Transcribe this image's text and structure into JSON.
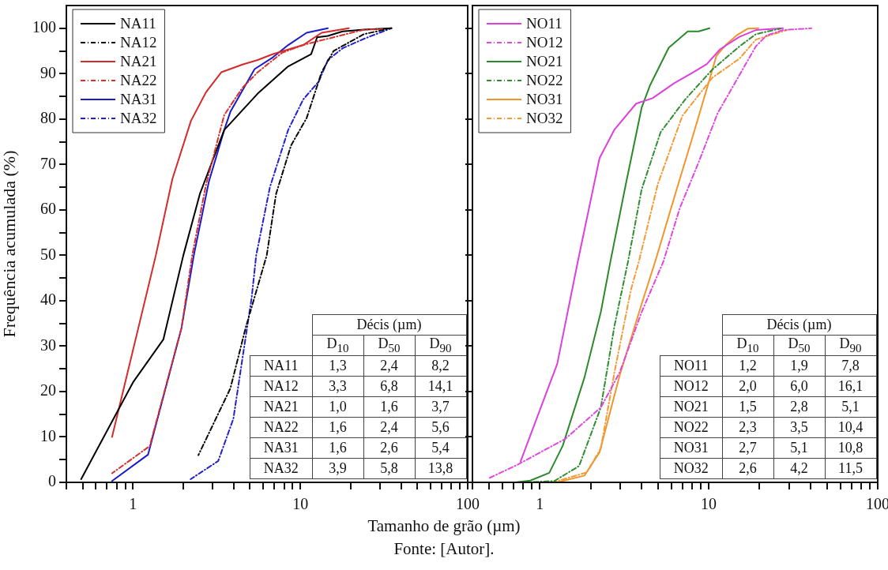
{
  "chart_data": [
    {
      "type": "line",
      "ylabel": "Frequência acumulada (%)",
      "xlabel": "Tamanho de grão (µm)",
      "log": "x",
      "legend": "top left",
      "xlim": [
        0.4,
        100
      ],
      "ylim": [
        0,
        105
      ],
      "xticks": [
        {
          "value": 0.4,
          "label": null
        },
        {
          "value": 0.5,
          "label": null
        },
        {
          "value": 0.6,
          "label": null
        },
        {
          "value": 0.7,
          "label": null
        },
        {
          "value": 0.8,
          "label": null
        },
        {
          "value": 0.9,
          "label": null
        },
        1,
        {
          "value": 2,
          "label": null
        },
        {
          "value": 3,
          "label": null
        },
        {
          "value": 4,
          "label": null
        },
        {
          "value": 5,
          "label": null
        },
        {
          "value": 6,
          "label": null
        },
        {
          "value": 7,
          "label": null
        },
        {
          "value": 8,
          "label": null
        },
        {
          "value": 9,
          "label": null
        },
        10,
        {
          "value": 20,
          "label": null
        },
        {
          "value": 30,
          "label": null
        },
        {
          "value": 40,
          "label": null
        },
        {
          "value": 50,
          "label": null
        },
        {
          "value": 60,
          "label": null
        },
        {
          "value": 70,
          "label": null
        },
        {
          "value": 80,
          "label": null
        },
        {
          "value": 90,
          "label": null
        },
        100
      ],
      "yticks": [
        0,
        {
          "value": 5,
          "label": null
        },
        10,
        {
          "value": 15,
          "label": null
        },
        20,
        {
          "value": 25,
          "label": null
        },
        30,
        {
          "value": 35,
          "label": null
        },
        40,
        {
          "value": 45,
          "label": null
        },
        50,
        {
          "value": 55,
          "label": null
        },
        60,
        {
          "value": 65,
          "label": null
        },
        70,
        {
          "value": 75,
          "label": null
        },
        80,
        {
          "value": 85,
          "label": null
        },
        90,
        {
          "value": 95,
          "label": null
        },
        100
      ],
      "annotations": [
        "Décis (µm)",
        "D$_{10}$",
        "D$_{50}$",
        "D$_{90}$",
        "NA11",
        "1,3",
        "2,4",
        "8,2",
        "NA12",
        "3,3",
        "6,8",
        "14,1",
        "NA21",
        "1,0",
        "1,6",
        "3,7",
        "NA22",
        "1,6",
        "2,4",
        "5,6",
        "NA31",
        "1,6",
        "2,6",
        "5,4",
        "NA32",
        "3,9",
        "5,8",
        "13,8",
        "Fonte: [Autor]."
      ],
      "series": [
        {
          "name": "NA11",
          "color": "#000000",
          "line_style": "solid",
          "x": [
            0.49,
            1.0,
            1.52,
            2.0,
            2.51,
            3.51,
            5.56,
            8.46,
            11.6,
            12.6,
            14.6,
            17.9,
            24.1,
            35
          ],
          "values": [
            0.7,
            22,
            31.5,
            50,
            63.5,
            77.6,
            85.6,
            91.6,
            94.3,
            98,
            98.3,
            99.3,
            99.7,
            100
          ]
        },
        {
          "name": "NA12",
          "color": "#080808",
          "line_style": "dashdot",
          "x": [
            2.46,
            3.82,
            4.71,
            6.3,
            7.16,
            8.8,
            10.9,
            13.4,
            15.8,
            24,
            35
          ],
          "values": [
            6,
            20.7,
            34,
            50,
            63.5,
            74.2,
            80.2,
            90.3,
            95,
            98.7,
            100
          ]
        },
        {
          "name": "NA21",
          "color": "#d42a2a",
          "line_style": "solid",
          "x": [
            0.75,
            1.37,
            1.72,
            2.22,
            2.73,
            3.37,
            4.51,
            5.56,
            6.86,
            10.4,
            13.4,
            19.5
          ],
          "values": [
            10,
            50,
            66.8,
            79.6,
            85.9,
            90.3,
            92,
            93,
            94.3,
            96.3,
            99,
            100
          ]
        },
        {
          "name": "NA22",
          "color": "#d8302c",
          "line_style": "dashdot",
          "x": [
            0.75,
            1.26,
            1.95,
            2.26,
            2.73,
            3.51,
            4.51,
            5.56,
            7.78,
            10.4,
            12.3,
            15.8,
            24.1,
            31
          ],
          "values": [
            2,
            8,
            34,
            50,
            65.5,
            80.9,
            86.9,
            90.3,
            94.6,
            96.3,
            97,
            98,
            99.7,
            99.8
          ]
        },
        {
          "name": "NA31",
          "color": "#1a1acc",
          "line_style": "solid",
          "x": [
            0.75,
            1.23,
            1.95,
            2.31,
            2.84,
            3.51,
            3.82,
            5.33,
            6.86,
            8.46,
            10.9,
            14.6
          ],
          "values": [
            0.3,
            6.1,
            34,
            50,
            66.2,
            77.6,
            81.6,
            91,
            93.6,
            96.3,
            99,
            100
          ]
        },
        {
          "name": "NA32",
          "color": "#2020d0",
          "line_style": "dashdot",
          "x": [
            2.21,
            3.23,
            3.98,
            4.51,
            5.12,
            5.45,
            6.58,
            8.46,
            10.4,
            12.9,
            14.6,
            17.9,
            24.1,
            35
          ],
          "values": [
            0.7,
            4.7,
            14,
            27.3,
            40.7,
            50,
            65,
            77.6,
            84.3,
            88.3,
            93,
            95.6,
            97.7,
            100
          ]
        }
      ]
    },
    {
      "type": "line",
      "log": "x",
      "legend": "top left",
      "tick_labels": "x",
      "xlim": [
        0.4,
        100
      ],
      "ylim": [
        0,
        105
      ],
      "xticks": [
        {
          "value": 0.4,
          "label": null
        },
        {
          "value": 0.5,
          "label": null
        },
        {
          "value": 0.6,
          "label": null
        },
        {
          "value": 0.7,
          "label": null
        },
        {
          "value": 0.8,
          "label": null
        },
        {
          "value": 0.9,
          "label": null
        },
        1,
        {
          "value": 2,
          "label": null
        },
        {
          "value": 3,
          "label": null
        },
        {
          "value": 4,
          "label": null
        },
        {
          "value": 5,
          "label": null
        },
        {
          "value": 6,
          "label": null
        },
        {
          "value": 7,
          "label": null
        },
        {
          "value": 8,
          "label": null
        },
        {
          "value": 9,
          "label": null
        },
        10,
        {
          "value": 20,
          "label": null
        },
        {
          "value": 30,
          "label": null
        },
        {
          "value": 40,
          "label": null
        },
        {
          "value": 50,
          "label": null
        },
        {
          "value": 60,
          "label": null
        },
        {
          "value": 70,
          "label": null
        },
        {
          "value": 80,
          "label": null
        },
        {
          "value": 90,
          "label": null
        },
        100
      ],
      "yticks": [
        0,
        10,
        20,
        30,
        40,
        50,
        60,
        70,
        80,
        90,
        100
      ],
      "annotations": [
        "Décis (µm)",
        "D$_{10}$",
        "D$_{50}$",
        "D$_{90}$",
        "NO11",
        "1,2",
        "1,9",
        "7,8",
        "NO12",
        "2,0",
        "6,0",
        "16,1",
        "NO21",
        "1,5",
        "2,8",
        "5,1",
        "NO22",
        "2,3",
        "3,5",
        "10,4",
        "NO31",
        "2,7",
        "5,1",
        "10,8",
        "NO32",
        "2,6",
        "4,2",
        "11,5"
      ],
      "series": [
        {
          "name": "NO11",
          "color": "#dd3fdd",
          "line_style": "solid",
          "x": [
            0.77,
            1.27,
            1.68,
            2.26,
            2.77,
            3.72,
            4.65,
            6.25,
            8.09,
            9.75,
            11.7,
            15.2,
            19.0,
            27.5
          ],
          "values": [
            4.6,
            26.1,
            48.6,
            71.4,
            77.7,
            83.4,
            84.6,
            87.9,
            90.3,
            92.1,
            95.4,
            98.1,
            99.6,
            100
          ]
        },
        {
          "name": "NO12",
          "color": "#e046e0",
          "line_style": "dashdot",
          "x": [
            0.5,
            0.74,
            1.42,
            2.3,
            2.98,
            4.01,
            5.39,
            6.73,
            8.72,
            11.3,
            15.2,
            19,
            22,
            27.5,
            40.5
          ],
          "values": [
            0.9,
            3.9,
            9.6,
            16.5,
            24.3,
            37.5,
            48.6,
            60.3,
            70.5,
            81.3,
            89.7,
            96,
            98.4,
            99.6,
            100
          ]
        },
        {
          "name": "NO21",
          "color": "#2a8a2a",
          "line_style": "solid",
          "x": [
            0.72,
            0.88,
            1.14,
            1.37,
            1.84,
            2.3,
            2.62,
            3.21,
            4.01,
            4.48,
            5.8,
            7.52,
            8.72,
            10.1
          ],
          "values": [
            0,
            0.4,
            2.1,
            8.1,
            23.1,
            37.5,
            48.6,
            65.1,
            82.5,
            87.3,
            95.7,
            99.3,
            99.3,
            100
          ]
        },
        {
          "name": "NO22",
          "color": "#308e30",
          "line_style": "dashdot",
          "x": [
            0.82,
            1.22,
            1.71,
            2.3,
            2.77,
            3.33,
            4.01,
            5.19,
            7.25,
            10.5,
            15.2,
            19,
            26.5
          ],
          "values": [
            0,
            0.3,
            3.6,
            16.5,
            34.5,
            48.6,
            64.5,
            77.1,
            84.3,
            90.9,
            96,
            98.7,
            99.9
          ]
        },
        {
          "name": "NO31",
          "color": "#f0952e",
          "line_style": "solid",
          "x": [
            1.27,
            1.84,
            2.26,
            2.98,
            4.01,
            4.82,
            6.25,
            8.09,
            9.75,
            11.1,
            12.6,
            14.6,
            17,
            19.7
          ],
          "values": [
            0,
            1.5,
            6.6,
            23.7,
            39.3,
            48.6,
            62.7,
            76.5,
            86.7,
            93.9,
            96.3,
            98.4,
            99.9,
            100
          ]
        },
        {
          "name": "NO32",
          "color": "#f29a36",
          "line_style": "dashdot",
          "x": [
            1.2,
            1.9,
            2.3,
            2.77,
            3.46,
            3.86,
            5.0,
            6.98,
            10.5,
            15.2,
            19,
            29
          ],
          "values": [
            0,
            2.2,
            7.5,
            24.3,
            42.3,
            48.6,
            65.7,
            80.7,
            89.1,
            93.3,
            97.5,
            99.6
          ]
        }
      ]
    }
  ]
}
